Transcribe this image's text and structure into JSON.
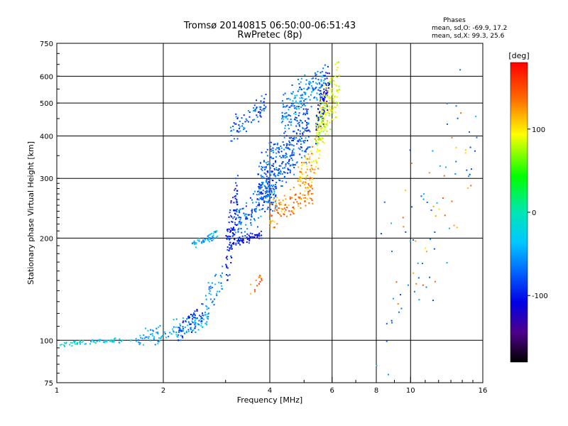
{
  "chart_data": {
    "type": "scatter",
    "title": "Tromsø 20140815 06:50:00-06:51:43",
    "subtitle": "RwPretec (8p)",
    "xlabel": "Frequency [MHz]",
    "ylabel": "Stationary phase Virtual Height [km]",
    "x_scale": "log",
    "y_scale": "log",
    "xlim": [
      1,
      16
    ],
    "ylim": [
      75,
      750
    ],
    "x_ticks": [
      1,
      2,
      4,
      6,
      8,
      10,
      16
    ],
    "x_tick_labels": [
      "1",
      "2",
      "4",
      "6",
      "8",
      "10",
      "16"
    ],
    "y_ticks": [
      75,
      100,
      200,
      300,
      400,
      500,
      600,
      750
    ],
    "y_tick_labels": [
      "75",
      "100",
      "200",
      "300",
      "400",
      "500",
      "600",
      "750"
    ],
    "grid": true,
    "phases": {
      "heading": "Phases",
      "line_o": "mean, sd,O: -69.9, 17.2",
      "line_x": "mean, sd,X:  99.3, 25.6"
    },
    "colorbar": {
      "label": "[deg]",
      "range": [
        -180,
        180
      ],
      "ticks": [
        100,
        0,
        -100
      ],
      "tick_labels": [
        "100",
        "0",
        "-100"
      ]
    },
    "point_clusters": [
      {
        "desc": "low trace",
        "x": [
          1.0,
          1.7
        ],
        "y": [
          96,
          102
        ],
        "phase": -25,
        "n": 70
      },
      {
        "desc": "low trace rising",
        "x": [
          1.7,
          2.7
        ],
        "y": [
          96,
          120
        ],
        "phase": -45,
        "n": 120
      },
      {
        "desc": "low trace dark",
        "x": [
          2.2,
          2.6
        ],
        "y": [
          100,
          128
        ],
        "phase": -85,
        "n": 60
      },
      {
        "desc": "mid rise",
        "x": [
          2.6,
          2.95
        ],
        "y": [
          118,
          165
        ],
        "phase": -55,
        "n": 40
      },
      {
        "desc": "F1 cusp",
        "x": [
          2.4,
          2.85
        ],
        "y": [
          188,
          210
        ],
        "phase": -40,
        "n": 50
      },
      {
        "desc": "O-mode vertical",
        "x": [
          3.0,
          3.25
        ],
        "y": [
          145,
          310
        ],
        "phase": -95,
        "n": 110
      },
      {
        "desc": "O-mode base",
        "x": [
          3.2,
          3.8
        ],
        "y": [
          190,
          210
        ],
        "phase": -100,
        "n": 60
      },
      {
        "desc": "O-mode body",
        "x": [
          3.2,
          4.2
        ],
        "y": [
          200,
          300
        ],
        "phase": -70,
        "n": 150
      },
      {
        "desc": "O-mode F2",
        "x": [
          3.7,
          5.2
        ],
        "y": [
          250,
          480
        ],
        "phase": -75,
        "n": 350
      },
      {
        "desc": "upper trace",
        "x": [
          3.1,
          3.9
        ],
        "y": [
          385,
          530
        ],
        "phase": -70,
        "n": 80
      },
      {
        "desc": "O-mode top",
        "x": [
          4.3,
          5.8
        ],
        "y": [
          420,
          660
        ],
        "phase": -60,
        "n": 180
      },
      {
        "desc": "O-mode cusp dark",
        "x": [
          5.4,
          5.9
        ],
        "y": [
          380,
          640
        ],
        "phase": -105,
        "n": 90
      },
      {
        "desc": "X-mode rise",
        "x": [
          4.0,
          5.3
        ],
        "y": [
          215,
          300
        ],
        "phase": 135,
        "n": 120
      },
      {
        "desc": "X-mode body",
        "x": [
          4.8,
          5.6
        ],
        "y": [
          260,
          400
        ],
        "phase": 120,
        "n": 80
      },
      {
        "desc": "X-mode top",
        "x": [
          5.4,
          6.3
        ],
        "y": [
          360,
          660
        ],
        "phase": 95,
        "n": 170
      },
      {
        "desc": "X-mode low",
        "x": [
          3.5,
          3.8
        ],
        "y": [
          130,
          160
        ],
        "phase": 140,
        "n": 15
      },
      {
        "desc": "scatter high freq",
        "x": [
          8.0,
          15.5
        ],
        "y": [
          75,
          660
        ],
        "phase": -60,
        "n": 60
      },
      {
        "desc": "scatter high freq warm",
        "x": [
          8.5,
          15.0
        ],
        "y": [
          80,
          620
        ],
        "phase": 130,
        "n": 30
      }
    ]
  }
}
